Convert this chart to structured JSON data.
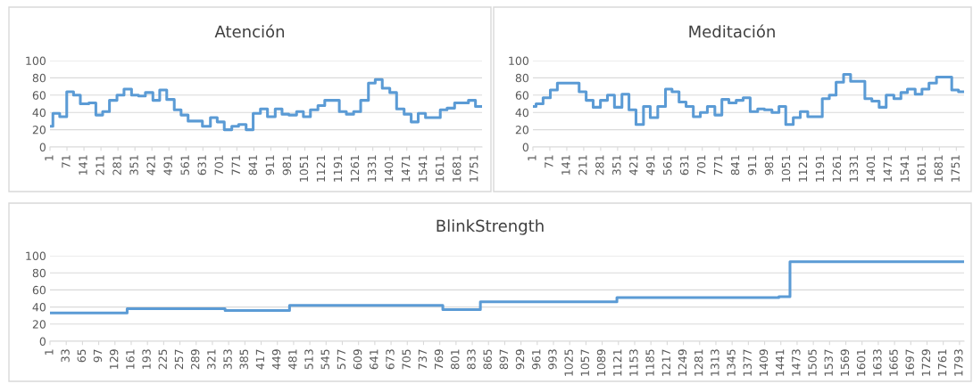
{
  "chart_data": [
    {
      "type": "step",
      "title": "Atención",
      "color": "#5b9bd5",
      "grid": "y",
      "xlim": [
        1,
        1781
      ],
      "ylim": [
        0,
        100
      ],
      "yticks": [
        0,
        20,
        40,
        60,
        80,
        100
      ],
      "xticks": [
        1,
        71,
        141,
        211,
        281,
        351,
        421,
        491,
        561,
        631,
        701,
        771,
        841,
        911,
        981,
        1051,
        1121,
        1191,
        1261,
        1331,
        1401,
        1471,
        1541,
        1611,
        1681,
        1751
      ],
      "x": [
        1,
        13,
        41,
        70,
        98,
        126,
        161,
        190,
        218,
        246,
        277,
        306,
        337,
        366,
        394,
        425,
        453,
        482,
        513,
        541,
        570,
        629,
        662,
        690,
        719,
        750,
        778,
        809,
        838,
        868,
        897,
        929,
        957,
        985,
        1017,
        1045,
        1074,
        1105,
        1133,
        1193,
        1222,
        1252,
        1281,
        1313,
        1341,
        1370,
        1401,
        1429,
        1460,
        1489,
        1518,
        1548,
        1609,
        1637,
        1668,
        1725,
        1754,
        1781
      ],
      "values": [
        24,
        39,
        35,
        64,
        60,
        50,
        51,
        37,
        41,
        54,
        60,
        67,
        60,
        59,
        63,
        54,
        66,
        55,
        43,
        37,
        30,
        24,
        34,
        29,
        20,
        24,
        26,
        20,
        39,
        44,
        35,
        44,
        38,
        37,
        41,
        35,
        43,
        48,
        54,
        41,
        38,
        41,
        54,
        74,
        78,
        68,
        63,
        44,
        38,
        29,
        39,
        34,
        43,
        45,
        51,
        54,
        47,
        47
      ]
    },
    {
      "type": "step",
      "title": "Meditación",
      "color": "#5b9bd5",
      "grid": "y",
      "xlim": [
        1,
        1783
      ],
      "ylim": [
        0,
        100
      ],
      "yticks": [
        0,
        20,
        40,
        60,
        80,
        100
      ],
      "xticks": [
        1,
        71,
        141,
        211,
        281,
        351,
        421,
        491,
        561,
        631,
        701,
        771,
        841,
        911,
        981,
        1051,
        1121,
        1191,
        1261,
        1331,
        1401,
        1471,
        1541,
        1611,
        1681,
        1751
      ],
      "x": [
        1,
        14,
        43,
        73,
        102,
        192,
        221,
        250,
        280,
        309,
        338,
        369,
        398,
        427,
        458,
        486,
        517,
        549,
        576,
        605,
        634,
        664,
        693,
        722,
        753,
        782,
        811,
        841,
        870,
        899,
        930,
        958,
        989,
        1018,
        1046,
        1077,
        1106,
        1137,
        1197,
        1226,
        1254,
        1285,
        1314,
        1373,
        1402,
        1432,
        1461,
        1493,
        1522,
        1549,
        1581,
        1609,
        1638,
        1669,
        1732,
        1760,
        1783
      ],
      "values": [
        47,
        50,
        57,
        66,
        74,
        64,
        54,
        46,
        54,
        60,
        46,
        61,
        43,
        26,
        47,
        34,
        47,
        67,
        64,
        52,
        47,
        35,
        40,
        47,
        37,
        55,
        51,
        54,
        57,
        41,
        44,
        43,
        40,
        47,
        26,
        34,
        41,
        35,
        56,
        60,
        75,
        84,
        76,
        56,
        53,
        46,
        60,
        56,
        63,
        67,
        61,
        67,
        74,
        81,
        66,
        64,
        64
      ]
    },
    {
      "type": "step",
      "title": "BlinkStrength",
      "color": "#5b9bd5",
      "grid": "y",
      "xlim": [
        1,
        1802
      ],
      "ylim": [
        0,
        100
      ],
      "yticks": [
        0,
        20,
        40,
        60,
        80,
        100
      ],
      "xticks": [
        1,
        33,
        65,
        97,
        129,
        161,
        193,
        225,
        257,
        289,
        321,
        353,
        385,
        417,
        449,
        481,
        513,
        545,
        577,
        609,
        641,
        673,
        705,
        737,
        769,
        801,
        833,
        865,
        897,
        929,
        961,
        993,
        1025,
        1057,
        1089,
        1121,
        1153,
        1185,
        1217,
        1249,
        1281,
        1313,
        1345,
        1377,
        1409,
        1441,
        1473,
        1505,
        1537,
        1569,
        1601,
        1633,
        1665,
        1697,
        1729,
        1761,
        1793
      ],
      "x": [
        1,
        153,
        346,
        473,
        775,
        849,
        1118,
        1437,
        1459,
        1802
      ],
      "values": [
        33,
        38,
        36,
        42,
        37,
        46,
        51,
        52,
        93,
        93
      ]
    }
  ]
}
